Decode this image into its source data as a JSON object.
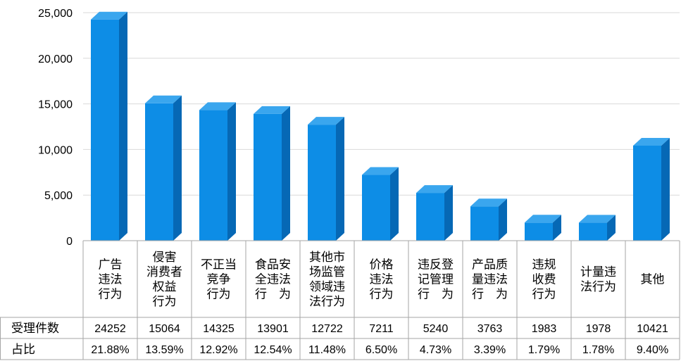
{
  "chart_data": {
    "type": "bar",
    "title": "",
    "xlabel": "",
    "ylabel": "",
    "ylim": [
      0,
      25000
    ],
    "yticks": [
      "0",
      "5,000",
      "10,000",
      "15,000",
      "20,000",
      "25,000"
    ],
    "grid": true,
    "categories": [
      [
        "广告",
        "违法",
        "行为"
      ],
      [
        "侵害",
        "消费者",
        "权益",
        "行为"
      ],
      [
        "不正当",
        "竞争",
        "行为"
      ],
      [
        "食品安",
        "全违法",
        "行　为"
      ],
      [
        "其他市",
        "场监管",
        "领域违",
        "法行为"
      ],
      [
        "价格",
        "违法",
        "行为"
      ],
      [
        "违反登",
        "记管理",
        "行　为"
      ],
      [
        "产品质",
        "量违法",
        "行　为"
      ],
      [
        "违规",
        "收费",
        "行为"
      ],
      [
        "计量违",
        "法行为"
      ],
      [
        "其他"
      ]
    ],
    "values": [
      24252,
      15064,
      14325,
      13901,
      12722,
      7211,
      5240,
      3763,
      1983,
      1978,
      10421
    ],
    "table": {
      "rows": [
        {
          "label": "受理件数",
          "cells": [
            "24252",
            "15064",
            "14325",
            "13901",
            "12722",
            "7211",
            "5240",
            "3763",
            "1983",
            "1978",
            "10421"
          ]
        },
        {
          "label": "占比",
          "cells": [
            "21.88%",
            "13.59%",
            "12.92%",
            "12.54%",
            "11.48%",
            "6.50%",
            "4.73%",
            "3.39%",
            "1.79%",
            "1.78%",
            "9.40%"
          ]
        }
      ]
    },
    "colors": {
      "bar_front": "#0d8de6",
      "bar_side": "#0668b5",
      "bar_top": "#3aa6ee",
      "grid": "#d9d9d9",
      "table_border": "#a6a6a6"
    }
  }
}
